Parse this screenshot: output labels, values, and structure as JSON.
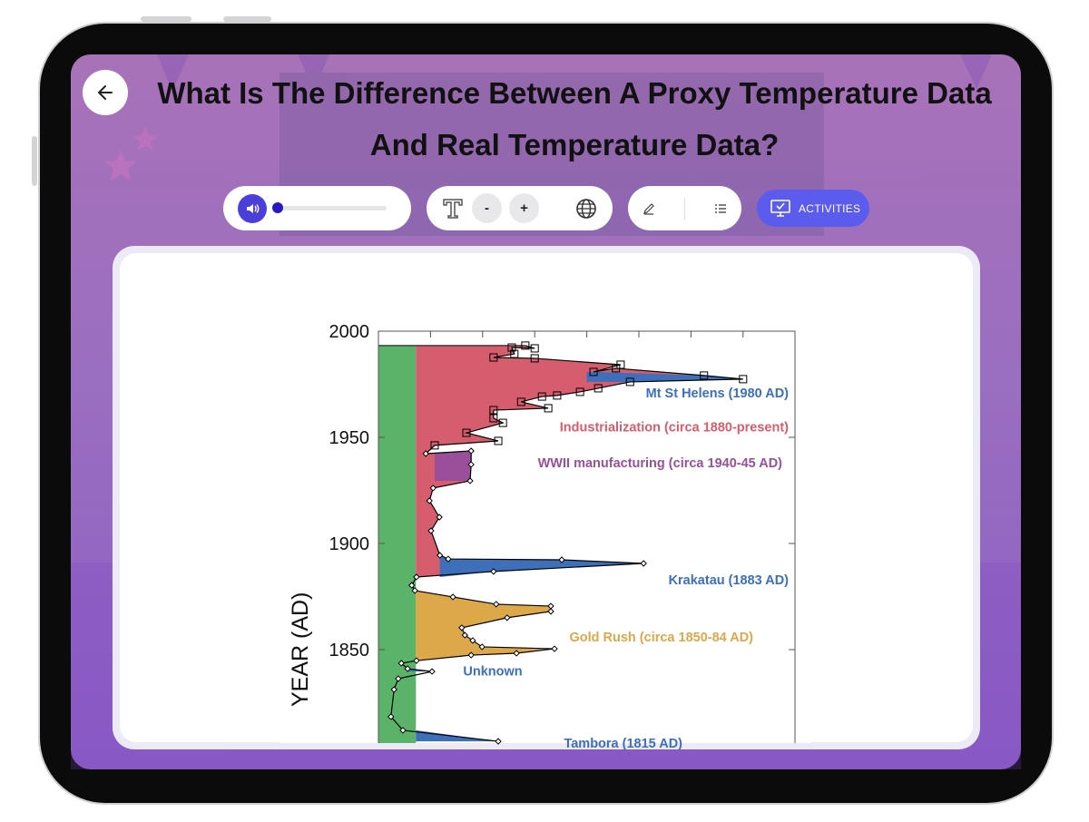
{
  "header": {
    "back_icon": "arrow-left-icon",
    "title": "What Is The Difference Between A Proxy Temperature Data And Real Temperature Data?"
  },
  "toolbar": {
    "audio": {
      "icon": "speaker-icon",
      "progress_percent": 0
    },
    "text": {
      "font_icon": "text-size-icon",
      "decrease_label": "-",
      "increase_label": "+",
      "language_icon": "globe-icon"
    },
    "tools": {
      "pen_icon": "pencil-icon",
      "list_icon": "list-icon"
    },
    "activities": {
      "icon": "monitor-check-icon",
      "label": "ACTIVITIES"
    },
    "accent": "#5b5cee"
  },
  "chart_data": {
    "type": "area",
    "ylabel": "YEAR (AD)",
    "yticks": [
      "2000",
      "1950",
      "1900",
      "1850"
    ],
    "ylim": [
      1807,
      2000
    ],
    "xticks_count": 7,
    "colors": {
      "baseline": "#5bb36a",
      "industrial": "#d65d6e",
      "volcanic": "#3d6fba",
      "wwii": "#9a4f9b",
      "goldrush": "#dca84a"
    },
    "annotations": [
      {
        "text": "Mt St Helens (1980 AD)",
        "color": "#3d6fba",
        "year": 1971
      },
      {
        "text": "Industrialization (circa 1880-present)",
        "color": "#d65d6e",
        "year": 1955
      },
      {
        "text": "WWII manufacturing (circa 1940-45 AD)",
        "color": "#9a4f9b",
        "year": 1938
      },
      {
        "text": "Krakatau (1883 AD)",
        "color": "#3d6fba",
        "year": 1883
      },
      {
        "text": "Gold Rush (circa 1850-84 AD)",
        "color": "#dca84a",
        "year": 1856
      },
      {
        "text": "Unknown",
        "color": "#3d6fba",
        "year": 1840
      },
      {
        "text": "Tambora (1815 AD)",
        "color": "#3d6fba",
        "year": 1806
      }
    ],
    "profile": [
      [
        2.82,
        1993.2
      ],
      [
        3.0,
        1991.9
      ],
      [
        2.56,
        1992.3
      ],
      [
        2.61,
        1989.3
      ],
      [
        2.21,
        1987.6
      ],
      [
        3.0,
        1987.2
      ],
      [
        4.65,
        1984.2
      ],
      [
        4.13,
        1980.8
      ],
      [
        4.56,
        1982.5
      ],
      [
        6.25,
        1979.1
      ],
      [
        7.0,
        1977.4
      ],
      [
        4.83,
        1976.1
      ],
      [
        4.22,
        1973.1
      ],
      [
        3.87,
        1971.4
      ],
      [
        3.43,
        1969.7
      ],
      [
        3.14,
        1969.2
      ],
      [
        2.74,
        1966.7
      ],
      [
        3.26,
        1963.7
      ],
      [
        2.21,
        1962.8
      ],
      [
        2.21,
        1959.0
      ],
      [
        2.39,
        1956.8
      ],
      [
        1.69,
        1952.1
      ],
      [
        2.3,
        1948.3
      ],
      [
        1.08,
        1946.2
      ],
      [
        0.91,
        1942.3
      ],
      [
        1.78,
        1943.6
      ],
      [
        1.78,
        1937.2
      ],
      [
        1.76,
        1929.5
      ],
      [
        1.05,
        1926.1
      ],
      [
        0.98,
        1920.1
      ],
      [
        1.17,
        1912.4
      ],
      [
        1.01,
        1906.0
      ],
      [
        1.18,
        1894.4
      ],
      [
        1.34,
        1892.7
      ],
      [
        3.52,
        1892.3
      ],
      [
        5.09,
        1890.6
      ],
      [
        2.21,
        1886.8
      ],
      [
        0.73,
        1884.2
      ],
      [
        0.64,
        1880.3
      ],
      [
        0.7,
        1877.8
      ],
      [
        1.43,
        1874.8
      ],
      [
        2.26,
        1871.4
      ],
      [
        3.31,
        1870.5
      ],
      [
        3.31,
        1868.0
      ],
      [
        2.47,
        1865.0
      ],
      [
        1.6,
        1860.3
      ],
      [
        1.66,
        1856.8
      ],
      [
        1.81,
        1854.3
      ],
      [
        1.99,
        1851.3
      ],
      [
        3.38,
        1850.4
      ],
      [
        2.65,
        1848.3
      ],
      [
        1.78,
        1847.4
      ],
      [
        0.73,
        1844.8
      ],
      [
        0.44,
        1843.6
      ],
      [
        0.56,
        1841.0
      ],
      [
        1.03,
        1839.7
      ],
      [
        0.38,
        1836.3
      ],
      [
        0.3,
        1831.2
      ],
      [
        0.24,
        1818.4
      ],
      [
        0.47,
        1812.0
      ],
      [
        2.3,
        1806.8
      ]
    ]
  }
}
